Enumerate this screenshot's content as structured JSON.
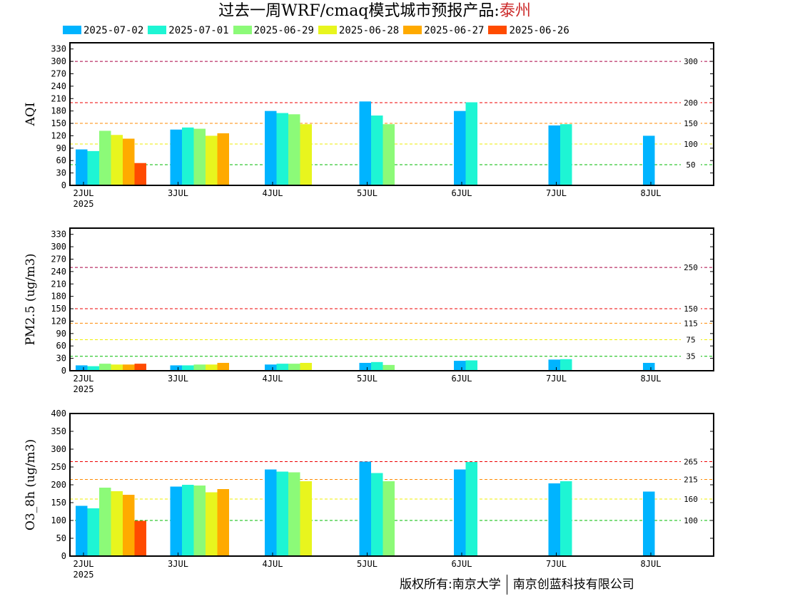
{
  "title": {
    "prefix": "过去一周WRF/cmaq模式城市预报产品:",
    "city": "泰州",
    "city_color": "#cc2a2a"
  },
  "legend": [
    {
      "label": "2025-07-02",
      "color": "#00b4ff"
    },
    {
      "label": "2025-07-01",
      "color": "#1ef5d4"
    },
    {
      "label": "2025-06-29",
      "color": "#8cfa78"
    },
    {
      "label": "2025-06-28",
      "color": "#e8f51e"
    },
    {
      "label": "2025-06-27",
      "color": "#ffaa00"
    },
    {
      "label": "2025-06-26",
      "color": "#ff4b00"
    }
  ],
  "footer": {
    "left": "版权所有:南京大学",
    "right": "南京创蓝科技有限公司"
  },
  "chart_data": [
    {
      "type": "bar",
      "ylabel": "AQI",
      "ylim": [
        0,
        345
      ],
      "yticks": [
        0,
        30,
        60,
        90,
        120,
        150,
        180,
        210,
        240,
        270,
        300,
        330
      ],
      "x_tick_labels": [
        "2JUL",
        "3JUL",
        "4JUL",
        "5JUL",
        "6JUL",
        "7JUL",
        "8JUL"
      ],
      "x_sublabel": "2025",
      "reference_lines": [
        {
          "value": 50,
          "label": "50",
          "color": "#00bb00"
        },
        {
          "value": 100,
          "label": "100",
          "color": "#eeee00"
        },
        {
          "value": 150,
          "label": "150",
          "color": "#ff8800"
        },
        {
          "value": 200,
          "label": "200",
          "color": "#ee0000"
        },
        {
          "value": 300,
          "label": "300",
          "color": "#aa0044"
        }
      ],
      "series": [
        {
          "name": "2025-07-02",
          "values": [
            87,
            135,
            180,
            203,
            180,
            145,
            120
          ]
        },
        {
          "name": "2025-07-01",
          "values": [
            83,
            140,
            175,
            169,
            201,
            148,
            null
          ]
        },
        {
          "name": "2025-06-29",
          "values": [
            132,
            137,
            172,
            148,
            null,
            null,
            null
          ]
        },
        {
          "name": "2025-06-28",
          "values": [
            122,
            120,
            148,
            null,
            null,
            null,
            null
          ]
        },
        {
          "name": "2025-06-27",
          "values": [
            113,
            126,
            null,
            null,
            null,
            null,
            null
          ]
        },
        {
          "name": "2025-06-26",
          "values": [
            54,
            null,
            null,
            null,
            null,
            null,
            null
          ]
        }
      ]
    },
    {
      "type": "bar",
      "ylabel": "PM2.5 (ug/m3)",
      "ylim": [
        0,
        345
      ],
      "yticks": [
        0,
        30,
        60,
        90,
        120,
        150,
        180,
        210,
        240,
        270,
        300,
        330
      ],
      "x_tick_labels": [
        "2JUL",
        "3JUL",
        "4JUL",
        "5JUL",
        "6JUL",
        "7JUL",
        "8JUL"
      ],
      "x_sublabel": "2025",
      "reference_lines": [
        {
          "value": 35,
          "label": "35",
          "color": "#00bb00"
        },
        {
          "value": 75,
          "label": "75",
          "color": "#eeee00"
        },
        {
          "value": 115,
          "label": "115",
          "color": "#ff8800"
        },
        {
          "value": 150,
          "label": "150",
          "color": "#ee0000"
        },
        {
          "value": 250,
          "label": "250",
          "color": "#aa0044"
        }
      ],
      "series": [
        {
          "name": "2025-07-02",
          "values": [
            13,
            13,
            15,
            19,
            24,
            27,
            19
          ]
        },
        {
          "name": "2025-07-01",
          "values": [
            11,
            13,
            17,
            21,
            25,
            28,
            null
          ]
        },
        {
          "name": "2025-06-29",
          "values": [
            17,
            15,
            17,
            14,
            null,
            null,
            null
          ]
        },
        {
          "name": "2025-06-28",
          "values": [
            15,
            15,
            19,
            null,
            null,
            null,
            null
          ]
        },
        {
          "name": "2025-06-27",
          "values": [
            15,
            19,
            null,
            null,
            null,
            null,
            null
          ]
        },
        {
          "name": "2025-06-26",
          "values": [
            17,
            null,
            null,
            null,
            null,
            null,
            null
          ]
        }
      ]
    },
    {
      "type": "bar",
      "ylabel": "O3_8h (ug/m3)",
      "ylim": [
        0,
        400
      ],
      "yticks": [
        0,
        50,
        100,
        150,
        200,
        250,
        300,
        350,
        400
      ],
      "x_tick_labels": [
        "2JUL",
        "3JUL",
        "4JUL",
        "5JUL",
        "6JUL",
        "7JUL",
        "8JUL"
      ],
      "x_sublabel": "2025",
      "reference_lines": [
        {
          "value": 100,
          "label": "100",
          "color": "#00bb00"
        },
        {
          "value": 160,
          "label": "160",
          "color": "#eeee00"
        },
        {
          "value": 215,
          "label": "215",
          "color": "#ff8800"
        },
        {
          "value": 265,
          "label": "265",
          "color": "#ee0000"
        }
      ],
      "series": [
        {
          "name": "2025-07-02",
          "values": [
            141,
            195,
            243,
            265,
            243,
            204,
            181
          ]
        },
        {
          "name": "2025-07-01",
          "values": [
            134,
            200,
            237,
            233,
            264,
            210,
            null
          ]
        },
        {
          "name": "2025-06-29",
          "values": [
            192,
            198,
            235,
            210,
            null,
            null,
            null
          ]
        },
        {
          "name": "2025-06-28",
          "values": [
            182,
            179,
            210,
            null,
            null,
            null,
            null
          ]
        },
        {
          "name": "2025-06-27",
          "values": [
            172,
            188,
            null,
            null,
            null,
            null,
            null
          ]
        },
        {
          "name": "2025-06-26",
          "values": [
            99,
            null,
            null,
            null,
            null,
            null,
            null
          ]
        }
      ]
    }
  ]
}
